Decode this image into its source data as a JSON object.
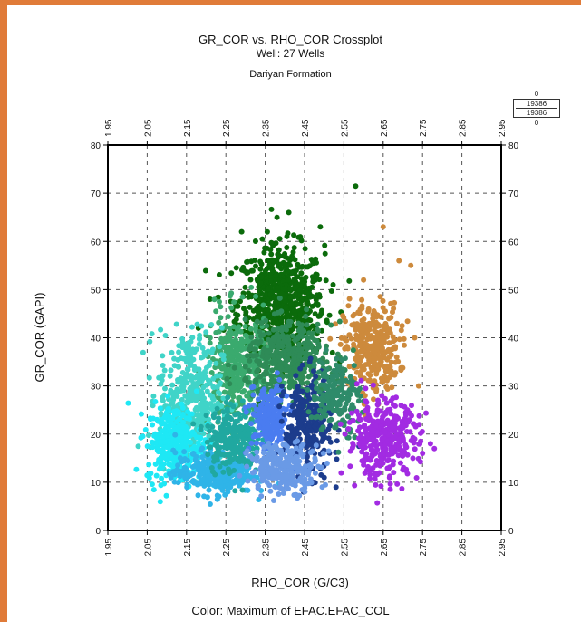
{
  "chart_data": {
    "type": "scatter",
    "title": "GR_COR vs. RHO_COR Crossplot",
    "subtitle": "Well: 27 Wells",
    "formation": "Dariyan Formation",
    "xlabel": "RHO_COR (G/C3)",
    "ylabel": "GR_COR (GAPI)",
    "color_caption": "Color: Maximum of EFAC.EFAC_COL",
    "xlim": [
      1.95,
      2.95
    ],
    "ylim": [
      0,
      80
    ],
    "x_ticks": [
      "1.95",
      "2.05",
      "2.15",
      "2.25",
      "2.35",
      "2.45",
      "2.55",
      "2.65",
      "2.75",
      "2.85",
      "2.95"
    ],
    "y_ticks": [
      "0",
      "10",
      "20",
      "30",
      "40",
      "50",
      "60",
      "70",
      "80"
    ],
    "grid": true,
    "scale_box": {
      "top": "0",
      "value_a": "19386",
      "value_b": "19386",
      "bottom": "0"
    },
    "colors": {
      "dark_green": "#0b6b0b",
      "medium_green": "#3aaa6e",
      "teal_green": "#2e8b57",
      "turquoise": "#40d4c8",
      "cyan": "#1ee8f5",
      "sky_blue": "#2fb4e8",
      "teal": "#20a8a0",
      "royal_blue": "#4a7cf0",
      "navy": "#1c3c8c",
      "cornflower": "#6a9ae6",
      "sea_green": "#2e8b6a",
      "orange_brown": "#cd8a3c",
      "purple": "#a22be2"
    },
    "series": [
      {
        "color": "dark_green",
        "cx": 2.39,
        "cy": 47,
        "sx": 0.055,
        "sy": 6,
        "n": 700,
        "outliers": [
          [
            2.58,
            71.5
          ],
          [
            2.41,
            66
          ],
          [
            2.29,
            62
          ],
          [
            2.49,
            63
          ],
          [
            2.38,
            65
          ],
          [
            2.21,
            48
          ],
          [
            2.18,
            42
          ]
        ]
      },
      {
        "color": "orange_brown",
        "cx": 2.62,
        "cy": 38,
        "sx": 0.035,
        "sy": 4.5,
        "n": 330,
        "outliers": [
          [
            2.65,
            63
          ],
          [
            2.69,
            56
          ],
          [
            2.72,
            55
          ],
          [
            2.6,
            52
          ],
          [
            2.73,
            40
          ],
          [
            2.74,
            30
          ]
        ]
      },
      {
        "color": "medium_green",
        "cx": 2.28,
        "cy": 33,
        "sx": 0.04,
        "sy": 6,
        "n": 380,
        "outliers": []
      },
      {
        "color": "turquoise",
        "cx": 2.16,
        "cy": 28,
        "sx": 0.04,
        "sy": 7,
        "n": 360,
        "outliers": [
          [
            2.14,
            38
          ],
          [
            2.13,
            37
          ],
          [
            2.16,
            36
          ]
        ]
      },
      {
        "color": "cyan",
        "cx": 2.12,
        "cy": 18,
        "sx": 0.035,
        "sy": 4,
        "n": 320,
        "outliers": []
      },
      {
        "color": "sky_blue",
        "cx": 2.22,
        "cy": 12,
        "sx": 0.05,
        "sy": 2.2,
        "n": 320,
        "outliers": []
      },
      {
        "color": "teal",
        "cx": 2.27,
        "cy": 19,
        "sx": 0.035,
        "sy": 3.5,
        "n": 260,
        "outliers": []
      },
      {
        "color": "teal_green",
        "cx": 2.41,
        "cy": 35,
        "sx": 0.055,
        "sy": 4,
        "n": 420,
        "outliers": []
      },
      {
        "color": "royal_blue",
        "cx": 2.36,
        "cy": 23,
        "sx": 0.025,
        "sy": 3.5,
        "n": 200,
        "outliers": []
      },
      {
        "color": "navy",
        "cx": 2.46,
        "cy": 22,
        "sx": 0.03,
        "sy": 5,
        "n": 280,
        "outliers": [
          [
            2.5,
            11
          ],
          [
            2.53,
            9
          ]
        ]
      },
      {
        "color": "cornflower",
        "cx": 2.4,
        "cy": 13,
        "sx": 0.045,
        "sy": 2.5,
        "n": 260,
        "outliers": []
      },
      {
        "color": "sea_green",
        "cx": 2.53,
        "cy": 28,
        "sx": 0.03,
        "sy": 4,
        "n": 180,
        "outliers": []
      },
      {
        "color": "purple",
        "cx": 2.65,
        "cy": 19,
        "sx": 0.045,
        "sy": 4,
        "n": 360,
        "outliers": [
          [
            2.75,
            16
          ],
          [
            2.73,
            19
          ],
          [
            2.78,
            17
          ],
          [
            2.77,
            18
          ]
        ]
      }
    ]
  }
}
